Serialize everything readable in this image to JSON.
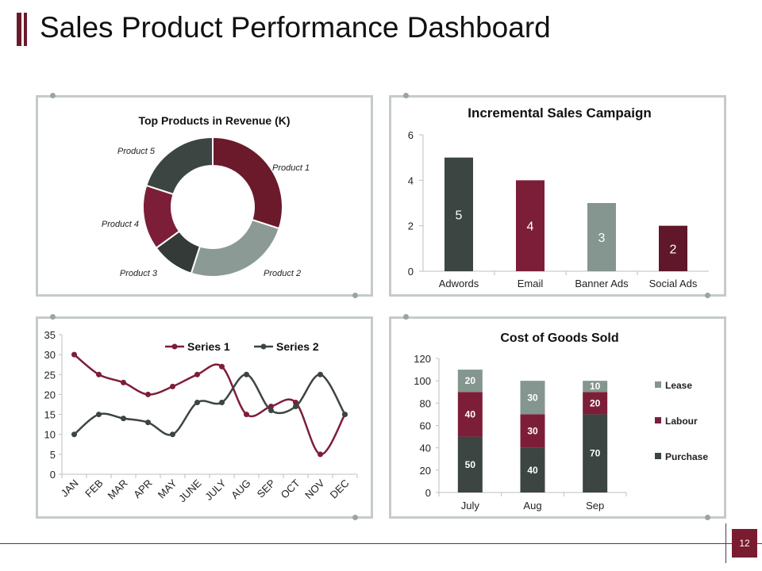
{
  "header": {
    "title": "Sales Product Performance Dashboard"
  },
  "footer": {
    "page_number": "12"
  },
  "colors": {
    "dark": "#3c4542",
    "maroon": "#7d1e38",
    "sage": "#85958f",
    "wine": "#5f1729",
    "accent": "#6b1a2b"
  },
  "chart_data": [
    {
      "type": "pie",
      "title": "Top Products in Revenue (K)",
      "labels": [
        "Product 1",
        "Product 2",
        "Product 3",
        "Product 4",
        "Product 5"
      ],
      "values": [
        30,
        25,
        10,
        15,
        20
      ],
      "colors": [
        "#6b1a2b",
        "#8c9a95",
        "#333a38",
        "#7d1e38",
        "#3c4542"
      ],
      "style": "donut"
    },
    {
      "type": "bar",
      "title": "Incremental Sales Campaign",
      "categories": [
        "Adwords",
        "Email",
        "Banner Ads",
        "Social Ads"
      ],
      "values": [
        5,
        4,
        3,
        2
      ],
      "colors": [
        "#3c4542",
        "#7d1e38",
        "#85958f",
        "#5f1729"
      ],
      "ylim": [
        0,
        6
      ],
      "yticks": [
        0,
        2,
        4,
        6
      ]
    },
    {
      "type": "line",
      "title": "",
      "categories": [
        "JAN",
        "FEB",
        "MAR",
        "APR",
        "MAY",
        "JUNE",
        "JULY",
        "AUG",
        "SEP",
        "OCT",
        "NOV",
        "DEC"
      ],
      "series": [
        {
          "name": "Series 1",
          "color": "#7d1e38",
          "values": [
            30,
            25,
            23,
            20,
            22,
            25,
            27,
            15,
            17,
            18,
            5,
            15
          ]
        },
        {
          "name": "Series 2",
          "color": "#3c4542",
          "values": [
            10,
            15,
            14,
            13,
            10,
            18,
            18,
            25,
            16,
            17,
            25,
            15
          ]
        }
      ],
      "ylim": [
        0,
        35
      ],
      "yticks": [
        0,
        5,
        10,
        15,
        20,
        25,
        30,
        35
      ],
      "legend": "top-right"
    },
    {
      "type": "bar",
      "stacked": true,
      "title": "Cost of Goods Sold",
      "categories": [
        "July",
        "Aug",
        "Sep"
      ],
      "series": [
        {
          "name": "Purchase",
          "color": "#3c4542",
          "values": [
            50,
            40,
            70
          ]
        },
        {
          "name": "Labour",
          "color": "#7d1e38",
          "values": [
            40,
            30,
            20
          ]
        },
        {
          "name": "Lease",
          "color": "#85958f",
          "values": [
            20,
            30,
            10
          ]
        }
      ],
      "legend_order": [
        "Lease",
        "Labour",
        "Purchase"
      ],
      "ylim": [
        0,
        120
      ],
      "yticks": [
        0,
        20,
        40,
        60,
        80,
        100,
        120
      ],
      "legend": "right"
    }
  ]
}
